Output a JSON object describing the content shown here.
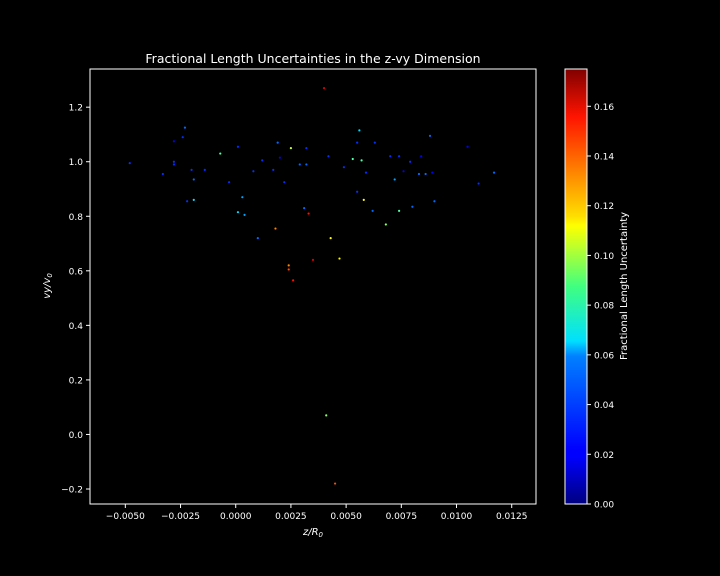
{
  "chart_data": {
    "type": "scatter",
    "title": "Fractional Length Uncertainties in the z-vy Dimension",
    "xlabel": "z/R",
    "xlabel_sub": "0",
    "ylabel": "vy/v",
    "ylabel_sub": "0",
    "xlim": [
      -0.0066,
      0.0136
    ],
    "ylim": [
      -0.255,
      1.34
    ],
    "xticks": [
      -0.005,
      -0.0025,
      0.0,
      0.0025,
      0.005,
      0.0075,
      0.01,
      0.0125
    ],
    "xtick_labels": [
      "−0.0050",
      "−0.0025",
      "0.0000",
      "0.0025",
      "0.0050",
      "0.0075",
      "0.0100",
      "0.0125"
    ],
    "yticks": [
      -0.2,
      0.0,
      0.2,
      0.4,
      0.6,
      0.8,
      1.0,
      1.2
    ],
    "ytick_labels": [
      "−0.2",
      "0.0",
      "0.2",
      "0.4",
      "0.6",
      "0.8",
      "1.0",
      "1.2"
    ],
    "colorbar": {
      "label": "Fractional Length Uncertainty",
      "colormap": "jet",
      "range": [
        0.0,
        0.175
      ],
      "ticks": [
        0.0,
        0.02,
        0.04,
        0.06,
        0.08,
        0.1,
        0.12,
        0.14,
        0.16
      ],
      "tick_labels": [
        "0.00",
        "0.02",
        "0.04",
        "0.06",
        "0.08",
        "0.10",
        "0.12",
        "0.14",
        "0.16"
      ]
    },
    "grid": false,
    "points": [
      {
        "x": -0.0048,
        "y": 0.995,
        "c": 0.03
      },
      {
        "x": -0.0033,
        "y": 0.955,
        "c": 0.03
      },
      {
        "x": -0.0028,
        "y": 1.075,
        "c": 0.02
      },
      {
        "x": -0.0028,
        "y": 1.0,
        "c": 0.03
      },
      {
        "x": -0.0028,
        "y": 0.99,
        "c": 0.03
      },
      {
        "x": -0.0024,
        "y": 1.09,
        "c": 0.03
      },
      {
        "x": -0.0023,
        "y": 1.125,
        "c": 0.04
      },
      {
        "x": -0.0022,
        "y": 0.855,
        "c": 0.03
      },
      {
        "x": -0.002,
        "y": 0.97,
        "c": 0.03
      },
      {
        "x": -0.0019,
        "y": 0.86,
        "c": 0.06
      },
      {
        "x": -0.0019,
        "y": 0.935,
        "c": 0.04
      },
      {
        "x": -0.0014,
        "y": 0.97,
        "c": 0.03
      },
      {
        "x": -0.0007,
        "y": 1.03,
        "c": 0.08
      },
      {
        "x": -0.0003,
        "y": 0.925,
        "c": 0.03
      },
      {
        "x": 0.0001,
        "y": 1.055,
        "c": 0.03
      },
      {
        "x": 0.0001,
        "y": 0.815,
        "c": 0.06
      },
      {
        "x": 0.0003,
        "y": 0.87,
        "c": 0.05
      },
      {
        "x": 0.0004,
        "y": 0.805,
        "c": 0.05
      },
      {
        "x": 0.0008,
        "y": 0.965,
        "c": 0.03
      },
      {
        "x": 0.001,
        "y": 0.72,
        "c": 0.04
      },
      {
        "x": 0.0012,
        "y": 1.005,
        "c": 0.03
      },
      {
        "x": 0.0017,
        "y": 0.97,
        "c": 0.03
      },
      {
        "x": 0.0018,
        "y": 0.755,
        "c": 0.13
      },
      {
        "x": 0.0019,
        "y": 1.07,
        "c": 0.04
      },
      {
        "x": 0.002,
        "y": 1.015,
        "c": 0.02
      },
      {
        "x": 0.0022,
        "y": 0.925,
        "c": 0.03
      },
      {
        "x": 0.0024,
        "y": 0.62,
        "c": 0.13
      },
      {
        "x": 0.0024,
        "y": 0.605,
        "c": 0.14
      },
      {
        "x": 0.0025,
        "y": 1.05,
        "c": 0.1
      },
      {
        "x": 0.0026,
        "y": 0.565,
        "c": 0.15
      },
      {
        "x": 0.0029,
        "y": 0.99,
        "c": 0.04
      },
      {
        "x": 0.0031,
        "y": 0.83,
        "c": 0.04
      },
      {
        "x": 0.0032,
        "y": 1.05,
        "c": 0.03
      },
      {
        "x": 0.0032,
        "y": 0.99,
        "c": 0.04
      },
      {
        "x": 0.0033,
        "y": 0.81,
        "c": 0.15
      },
      {
        "x": 0.0035,
        "y": 0.64,
        "c": 0.16
      },
      {
        "x": 0.004,
        "y": 1.27,
        "c": 0.16
      },
      {
        "x": 0.0041,
        "y": 0.07,
        "c": 0.09
      },
      {
        "x": 0.0042,
        "y": 1.02,
        "c": 0.03
      },
      {
        "x": 0.0043,
        "y": 0.72,
        "c": 0.11
      },
      {
        "x": 0.0045,
        "y": -0.18,
        "c": 0.14
      },
      {
        "x": 0.0047,
        "y": 0.645,
        "c": 0.11
      },
      {
        "x": 0.0049,
        "y": 0.98,
        "c": 0.03
      },
      {
        "x": 0.0053,
        "y": 1.01,
        "c": 0.08
      },
      {
        "x": 0.0055,
        "y": 1.07,
        "c": 0.03
      },
      {
        "x": 0.0055,
        "y": 0.89,
        "c": 0.03
      },
      {
        "x": 0.0056,
        "y": 1.115,
        "c": 0.06
      },
      {
        "x": 0.0057,
        "y": 1.005,
        "c": 0.08
      },
      {
        "x": 0.0058,
        "y": 0.86,
        "c": 0.11
      },
      {
        "x": 0.0059,
        "y": 0.96,
        "c": 0.03
      },
      {
        "x": 0.0062,
        "y": 0.82,
        "c": 0.04
      },
      {
        "x": 0.0063,
        "y": 1.07,
        "c": 0.03
      },
      {
        "x": 0.0068,
        "y": 0.77,
        "c": 0.09
      },
      {
        "x": 0.007,
        "y": 1.02,
        "c": 0.03
      },
      {
        "x": 0.0072,
        "y": 0.935,
        "c": 0.05
      },
      {
        "x": 0.0074,
        "y": 1.02,
        "c": 0.03
      },
      {
        "x": 0.0074,
        "y": 0.82,
        "c": 0.08
      },
      {
        "x": 0.0076,
        "y": 0.965,
        "c": 0.02
      },
      {
        "x": 0.0079,
        "y": 1.0,
        "c": 0.03
      },
      {
        "x": 0.008,
        "y": 0.835,
        "c": 0.04
      },
      {
        "x": 0.0083,
        "y": 0.955,
        "c": 0.04
      },
      {
        "x": 0.0084,
        "y": 1.02,
        "c": 0.02
      },
      {
        "x": 0.0086,
        "y": 0.955,
        "c": 0.04
      },
      {
        "x": 0.0088,
        "y": 1.095,
        "c": 0.04
      },
      {
        "x": 0.0089,
        "y": 0.96,
        "c": 0.02
      },
      {
        "x": 0.009,
        "y": 0.855,
        "c": 0.04
      },
      {
        "x": 0.0105,
        "y": 1.055,
        "c": 0.02
      },
      {
        "x": 0.011,
        "y": 0.92,
        "c": 0.03
      },
      {
        "x": 0.0117,
        "y": 0.96,
        "c": 0.04
      }
    ]
  }
}
